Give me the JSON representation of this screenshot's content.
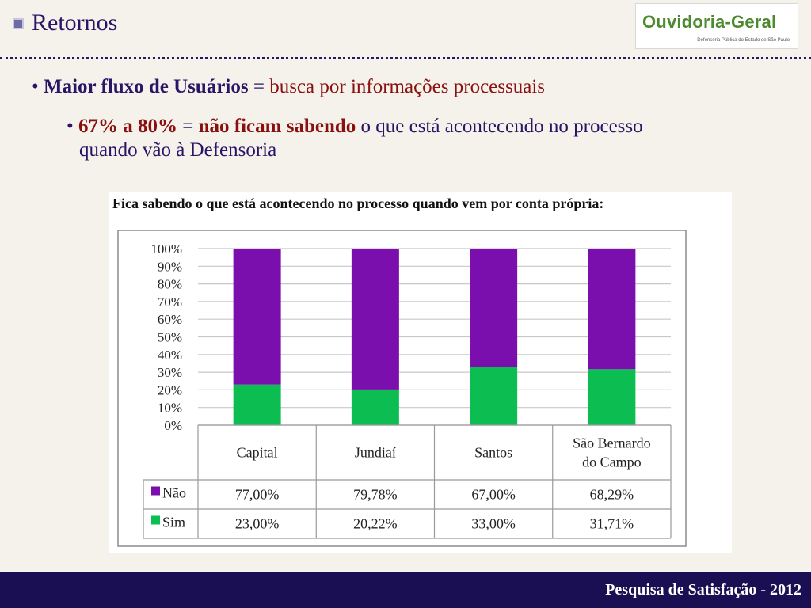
{
  "slide": {
    "title": "Retornos",
    "logo_text": "Ouvidoria-Geral",
    "logo_subtext": "Defensoria Pública do Estado de São Paulo"
  },
  "bullets": {
    "b1_bold": "Maior fluxo de Usuários",
    "b1_eq": " = ",
    "b1_rest": "busca por informações processuais",
    "b2_num": "67% a 80%",
    "b2_eq": " = ",
    "b2_bold": "não ficam sabendo",
    "b2_rest": " o que está acontecendo no processo",
    "b2_line2": "quando vão à Defensoria"
  },
  "footer": {
    "text": "Pesquisa de Satisfação - 2012"
  },
  "colors": {
    "nao": "#7b0fae",
    "sim": "#0cbd52",
    "accent": "#2a1466"
  },
  "chart_data": {
    "type": "bar",
    "stacked": true,
    "percent": true,
    "title": "Fica sabendo o que está acontecendo no processo quando vem por conta própria:",
    "categories": [
      "Capital",
      "Jundiaí",
      "Santos",
      "São Bernardo do Campo"
    ],
    "category_lines": [
      [
        "Capital"
      ],
      [
        "Jundiaí"
      ],
      [
        "Santos"
      ],
      [
        "São Bernardo",
        "do Campo"
      ]
    ],
    "series": [
      {
        "name": "Não",
        "values": [
          77.0,
          79.78,
          67.0,
          68.29
        ],
        "labels": [
          "77,00%",
          "79,78%",
          "67,00%",
          "68,29%"
        ],
        "color": "#7b0fae"
      },
      {
        "name": "Sim",
        "values": [
          23.0,
          20.22,
          33.0,
          31.71
        ],
        "labels": [
          "23,00%",
          "20,22%",
          "33,00%",
          "31,71%"
        ],
        "color": "#0cbd52"
      }
    ],
    "ylim": [
      0,
      100
    ],
    "yticks": [
      "0%",
      "10%",
      "20%",
      "30%",
      "40%",
      "50%",
      "60%",
      "70%",
      "80%",
      "90%",
      "100%"
    ],
    "grid": true,
    "legend": "data-table"
  }
}
